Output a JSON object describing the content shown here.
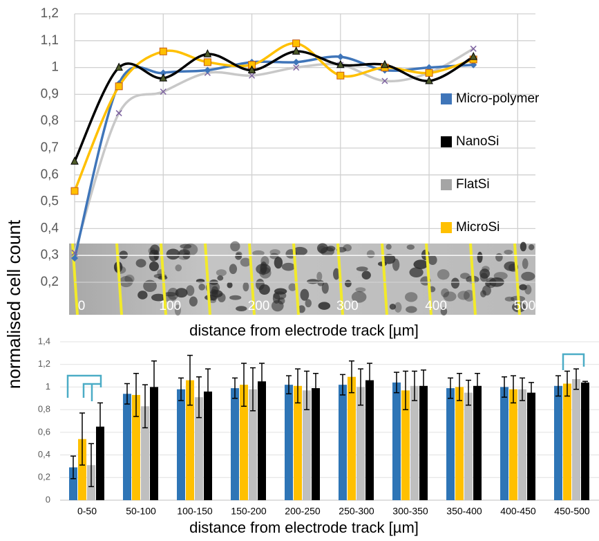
{
  "chart_data": [
    {
      "type": "line",
      "ylabel": "normalised cell count",
      "xlabel": "distance from electrode track [µm]",
      "x": [
        0,
        50,
        100,
        150,
        200,
        250,
        300,
        350,
        400,
        450
      ],
      "xlim": [
        0,
        520
      ],
      "xticks": [
        0,
        100,
        200,
        300,
        400,
        500
      ],
      "ylim": [
        0.2,
        1.2
      ],
      "yticks": [
        {
          "value": 0.2,
          "label": "0,2"
        },
        {
          "value": 0.3,
          "label": "0,3"
        },
        {
          "value": 0.4,
          "label": "0,4"
        },
        {
          "value": 0.5,
          "label": "0,5"
        },
        {
          "value": 0.6,
          "label": "0,6"
        },
        {
          "value": 0.7,
          "label": "0,7"
        },
        {
          "value": 0.8,
          "label": "0,8"
        },
        {
          "value": 0.9,
          "label": "0,9"
        },
        1,
        {
          "value": 1.1,
          "label": "1,1"
        },
        {
          "value": 1.2,
          "label": "1,2"
        }
      ],
      "grid": true,
      "legend": "right",
      "series": [
        {
          "name": "Micro-polymer",
          "color": "#3f75b9",
          "marker": "diamond",
          "values": [
            0.29,
            0.94,
            0.98,
            0.99,
            1.02,
            1.02,
            1.04,
            0.99,
            1.0,
            1.01
          ]
        },
        {
          "name": "NanoSi",
          "color": "#000000",
          "marker": "triangle",
          "values": [
            0.65,
            1.0,
            0.96,
            1.05,
            0.99,
            1.06,
            1.01,
            1.01,
            0.95,
            1.04
          ]
        },
        {
          "name": "FlatSi",
          "color": "#c8c8c8",
          "marker": "x",
          "marker_color": "#7d62a0",
          "values": [
            0.31,
            0.83,
            0.91,
            0.98,
            0.97,
            1.0,
            1.01,
            0.95,
            0.98,
            1.07
          ]
        },
        {
          "name": "MicroSi",
          "color": "#ffc000",
          "marker": "square",
          "values": [
            0.54,
            0.93,
            1.06,
            1.02,
            1.01,
            1.09,
            0.97,
            1.0,
            0.98,
            1.03
          ]
        }
      ]
    },
    {
      "type": "bar",
      "xlabel": "distance from electrode track [µm]",
      "categories": [
        "0-50",
        "50-100",
        "100-150",
        "150-200",
        "200-250",
        "250-300",
        "300-350",
        "350-400",
        "400-450",
        "450-500"
      ],
      "ylim": [
        0,
        1.4
      ],
      "yticks": [
        0,
        {
          "value": 0.2,
          "label": "0,2"
        },
        {
          "value": 0.4,
          "label": "0,4"
        },
        {
          "value": 0.6,
          "label": "0,6"
        },
        {
          "value": 0.8,
          "label": "0,8"
        },
        1,
        {
          "value": 1.2,
          "label": "1,2"
        },
        {
          "value": 1.4,
          "label": "1,4"
        }
      ],
      "grid": true,
      "series": [
        {
          "color": "#2e75b6",
          "values": [
            0.29,
            0.94,
            0.98,
            0.99,
            1.02,
            1.02,
            1.04,
            0.99,
            1.0,
            1.01
          ],
          "errors": [
            0.1,
            0.09,
            0.1,
            0.09,
            0.08,
            0.09,
            0.09,
            0.09,
            0.09,
            0.09
          ]
        },
        {
          "color": "#ffc000",
          "values": [
            0.54,
            0.93,
            1.06,
            1.02,
            1.01,
            1.09,
            0.97,
            1.0,
            0.98,
            1.03
          ],
          "errors": [
            0.23,
            0.19,
            0.22,
            0.19,
            0.15,
            0.14,
            0.17,
            0.12,
            0.12,
            0.11
          ]
        },
        {
          "color": "#bfbfbf",
          "values": [
            0.31,
            0.83,
            0.91,
            0.98,
            0.97,
            1.0,
            1.01,
            0.95,
            0.98,
            1.07
          ],
          "errors": [
            0.19,
            0.19,
            0.18,
            0.19,
            0.17,
            0.16,
            0.13,
            0.11,
            0.1,
            0.09
          ]
        },
        {
          "color": "#000000",
          "values": [
            0.65,
            1.0,
            0.96,
            1.05,
            0.99,
            1.06,
            1.01,
            1.01,
            0.95,
            1.04
          ],
          "errors": [
            0.21,
            0.23,
            0.2,
            0.16,
            0.13,
            0.15,
            0.14,
            0.11,
            0.09,
            0.01
          ]
        }
      ]
    }
  ]
}
